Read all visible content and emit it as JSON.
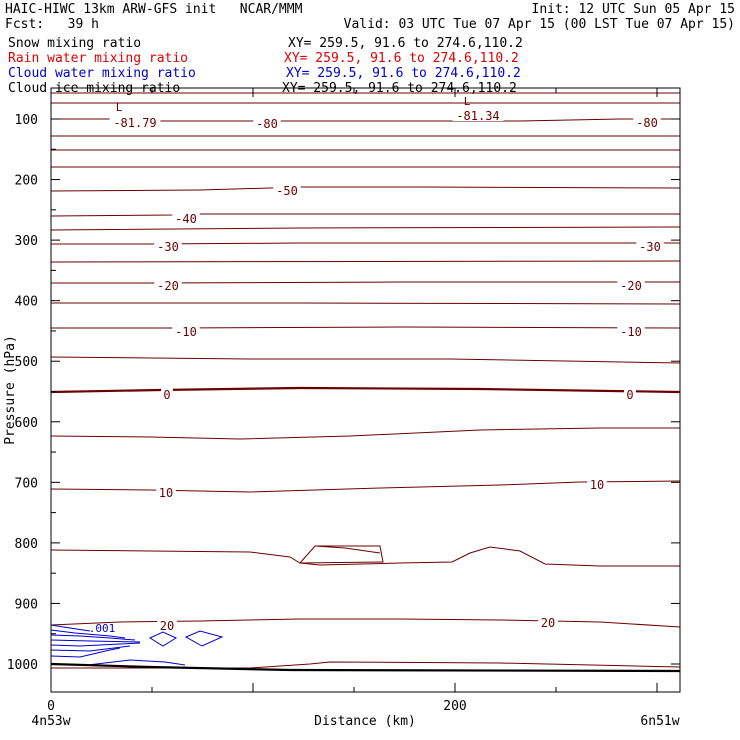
{
  "header": {
    "line1_left": "HAIC-HIWC 13km ARW-GFS init   NCAR/MMM",
    "line1_right": "Init: 12 UTC Sun 05 Apr 15",
    "line2_left": "Fcst:   39 h",
    "line2_right": "Valid: 03 UTC Tue 07 Apr 15 (00 LST Tue 07 Apr 15)",
    "fields": [
      {
        "name": "Snow mixing ratio",
        "xy": "XY= 259.5, 91.6 to 274.6,110.2",
        "color": "#000000"
      },
      {
        "name": "Rain water mixing ratio",
        "xy": "XY= 259.5, 91.6 to 274.6,110.2",
        "color": "#e00000"
      },
      {
        "name": "Cloud water mixing ratio",
        "xy": "XY= 259.5, 91.6 to 274.6,110.2",
        "color": "#0000cc"
      },
      {
        "name": "Cloud ice mixing ratio",
        "xy": "XY= 259.5, 91.6 to 274.6,110.2",
        "color": "#000000"
      }
    ]
  },
  "chart_data": {
    "type": "contour",
    "xlabel": "Distance (km)",
    "ylabel": "Pressure (hPa)",
    "xlim": [
      0,
      311
    ],
    "ylim": [
      1050,
      50
    ],
    "x_ticks": [
      "0",
      "200"
    ],
    "y_ticks": [
      "100",
      "200",
      "300",
      "400",
      "500",
      "600",
      "700",
      "800",
      "900",
      "1000"
    ],
    "x_end_labels": {
      "left": "4n53w",
      "right": "6n51w"
    },
    "contour_color": "#6b0000",
    "contour_labels": [
      "-81.79",
      "-80",
      "-81.34",
      "-80",
      "-50",
      "-40",
      "-30",
      "-30",
      "-20",
      "-20",
      "-10",
      "-10",
      "0",
      "0",
      "10",
      "10",
      "20",
      "20"
    ],
    "extrema_labels": [
      "L",
      "L"
    ],
    "cloud_water_label": ".001",
    "cloud_water_color": "#0000cc"
  }
}
